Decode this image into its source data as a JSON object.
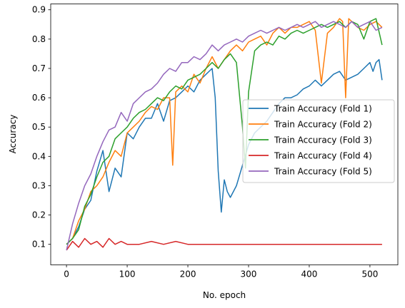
{
  "chart_data": {
    "type": "line",
    "title": "",
    "xlabel": "No. epoch",
    "ylabel": "Accuracy",
    "xlim": [
      -26,
      546
    ],
    "ylim": [
      0.03,
      0.92
    ],
    "xticks": [
      0,
      100,
      200,
      300,
      400,
      500
    ],
    "yticks": [
      0.1,
      0.2,
      0.3,
      0.4,
      0.5,
      0.6,
      0.7,
      0.8,
      0.9
    ],
    "grid": false,
    "legend_position": "center-right",
    "series": [
      {
        "name": "Train Accuracy (Fold 1)",
        "color": "#1f77b4",
        "x": [
          0,
          10,
          20,
          30,
          40,
          50,
          60,
          70,
          80,
          90,
          100,
          110,
          120,
          130,
          140,
          150,
          160,
          170,
          180,
          190,
          200,
          210,
          220,
          230,
          240,
          245,
          250,
          255,
          260,
          265,
          270,
          280,
          290,
          300,
          310,
          320,
          330,
          340,
          350,
          360,
          370,
          380,
          390,
          400,
          410,
          420,
          430,
          440,
          450,
          460,
          470,
          480,
          490,
          500,
          505,
          510,
          515,
          520
        ],
        "y": [
          0.1,
          0.12,
          0.16,
          0.22,
          0.25,
          0.35,
          0.42,
          0.28,
          0.36,
          0.33,
          0.48,
          0.46,
          0.5,
          0.53,
          0.53,
          0.58,
          0.52,
          0.59,
          0.6,
          0.62,
          0.64,
          0.62,
          0.66,
          0.68,
          0.7,
          0.6,
          0.35,
          0.21,
          0.32,
          0.28,
          0.26,
          0.3,
          0.37,
          0.44,
          0.48,
          0.5,
          0.52,
          0.55,
          0.58,
          0.6,
          0.6,
          0.61,
          0.63,
          0.64,
          0.66,
          0.64,
          0.66,
          0.68,
          0.69,
          0.66,
          0.67,
          0.68,
          0.7,
          0.72,
          0.69,
          0.72,
          0.73,
          0.66
        ]
      },
      {
        "name": "Train Accuracy (Fold 2)",
        "color": "#ff7f0e",
        "x": [
          0,
          10,
          20,
          30,
          40,
          50,
          60,
          70,
          80,
          90,
          100,
          110,
          120,
          130,
          140,
          150,
          160,
          170,
          175,
          180,
          190,
          200,
          210,
          220,
          230,
          240,
          250,
          260,
          270,
          280,
          290,
          300,
          310,
          320,
          330,
          340,
          350,
          360,
          370,
          380,
          390,
          400,
          410,
          420,
          430,
          440,
          450,
          455,
          460,
          465,
          470,
          480,
          490,
          500,
          510,
          520
        ],
        "y": [
          0.1,
          0.12,
          0.18,
          0.22,
          0.28,
          0.3,
          0.33,
          0.38,
          0.42,
          0.4,
          0.48,
          0.5,
          0.52,
          0.55,
          0.57,
          0.56,
          0.6,
          0.6,
          0.37,
          0.62,
          0.64,
          0.62,
          0.68,
          0.65,
          0.7,
          0.74,
          0.7,
          0.73,
          0.76,
          0.78,
          0.76,
          0.79,
          0.8,
          0.81,
          0.78,
          0.82,
          0.84,
          0.82,
          0.84,
          0.84,
          0.85,
          0.86,
          0.83,
          0.65,
          0.82,
          0.84,
          0.87,
          0.86,
          0.6,
          0.87,
          0.86,
          0.84,
          0.83,
          0.85,
          0.86,
          0.84
        ]
      },
      {
        "name": "Train Accuracy (Fold 3)",
        "color": "#2ca02c",
        "x": [
          0,
          10,
          20,
          30,
          40,
          50,
          60,
          70,
          80,
          90,
          100,
          110,
          120,
          130,
          140,
          150,
          160,
          170,
          180,
          190,
          200,
          210,
          220,
          230,
          240,
          250,
          260,
          270,
          280,
          290,
          295,
          300,
          310,
          320,
          330,
          340,
          350,
          360,
          370,
          380,
          390,
          400,
          410,
          420,
          430,
          440,
          450,
          460,
          470,
          480,
          490,
          500,
          510,
          520
        ],
        "y": [
          0.1,
          0.12,
          0.15,
          0.23,
          0.27,
          0.33,
          0.38,
          0.4,
          0.46,
          0.48,
          0.5,
          0.53,
          0.55,
          0.56,
          0.58,
          0.6,
          0.59,
          0.62,
          0.64,
          0.63,
          0.66,
          0.67,
          0.68,
          0.7,
          0.72,
          0.7,
          0.73,
          0.75,
          0.72,
          0.5,
          0.36,
          0.62,
          0.76,
          0.78,
          0.79,
          0.78,
          0.81,
          0.8,
          0.82,
          0.83,
          0.82,
          0.83,
          0.84,
          0.85,
          0.84,
          0.85,
          0.86,
          0.84,
          0.86,
          0.85,
          0.8,
          0.86,
          0.87,
          0.78
        ]
      },
      {
        "name": "Train Accuracy (Fold 4)",
        "color": "#d62728",
        "x": [
          0,
          10,
          20,
          30,
          40,
          50,
          60,
          70,
          80,
          90,
          100,
          120,
          140,
          160,
          180,
          200,
          240,
          280,
          320,
          360,
          400,
          440,
          480,
          520
        ],
        "y": [
          0.08,
          0.11,
          0.09,
          0.12,
          0.1,
          0.11,
          0.09,
          0.12,
          0.1,
          0.11,
          0.1,
          0.1,
          0.11,
          0.1,
          0.11,
          0.1,
          0.1,
          0.1,
          0.1,
          0.1,
          0.1,
          0.1,
          0.1,
          0.1
        ]
      },
      {
        "name": "Train Accuracy (Fold 5)",
        "color": "#9467bd",
        "x": [
          0,
          10,
          20,
          30,
          40,
          50,
          60,
          70,
          80,
          90,
          100,
          110,
          120,
          130,
          140,
          150,
          160,
          170,
          180,
          190,
          200,
          210,
          220,
          230,
          240,
          250,
          260,
          270,
          280,
          290,
          300,
          310,
          320,
          330,
          340,
          350,
          360,
          370,
          380,
          390,
          400,
          410,
          420,
          430,
          440,
          450,
          460,
          470,
          480,
          490,
          500,
          510,
          520
        ],
        "y": [
          0.08,
          0.17,
          0.24,
          0.3,
          0.34,
          0.4,
          0.45,
          0.49,
          0.5,
          0.55,
          0.52,
          0.58,
          0.6,
          0.62,
          0.63,
          0.65,
          0.68,
          0.7,
          0.69,
          0.72,
          0.72,
          0.74,
          0.73,
          0.75,
          0.78,
          0.76,
          0.78,
          0.79,
          0.8,
          0.79,
          0.81,
          0.82,
          0.83,
          0.82,
          0.83,
          0.84,
          0.83,
          0.84,
          0.85,
          0.84,
          0.85,
          0.86,
          0.84,
          0.85,
          0.86,
          0.85,
          0.84,
          0.86,
          0.84,
          0.85,
          0.86,
          0.83,
          0.84
        ]
      }
    ]
  }
}
